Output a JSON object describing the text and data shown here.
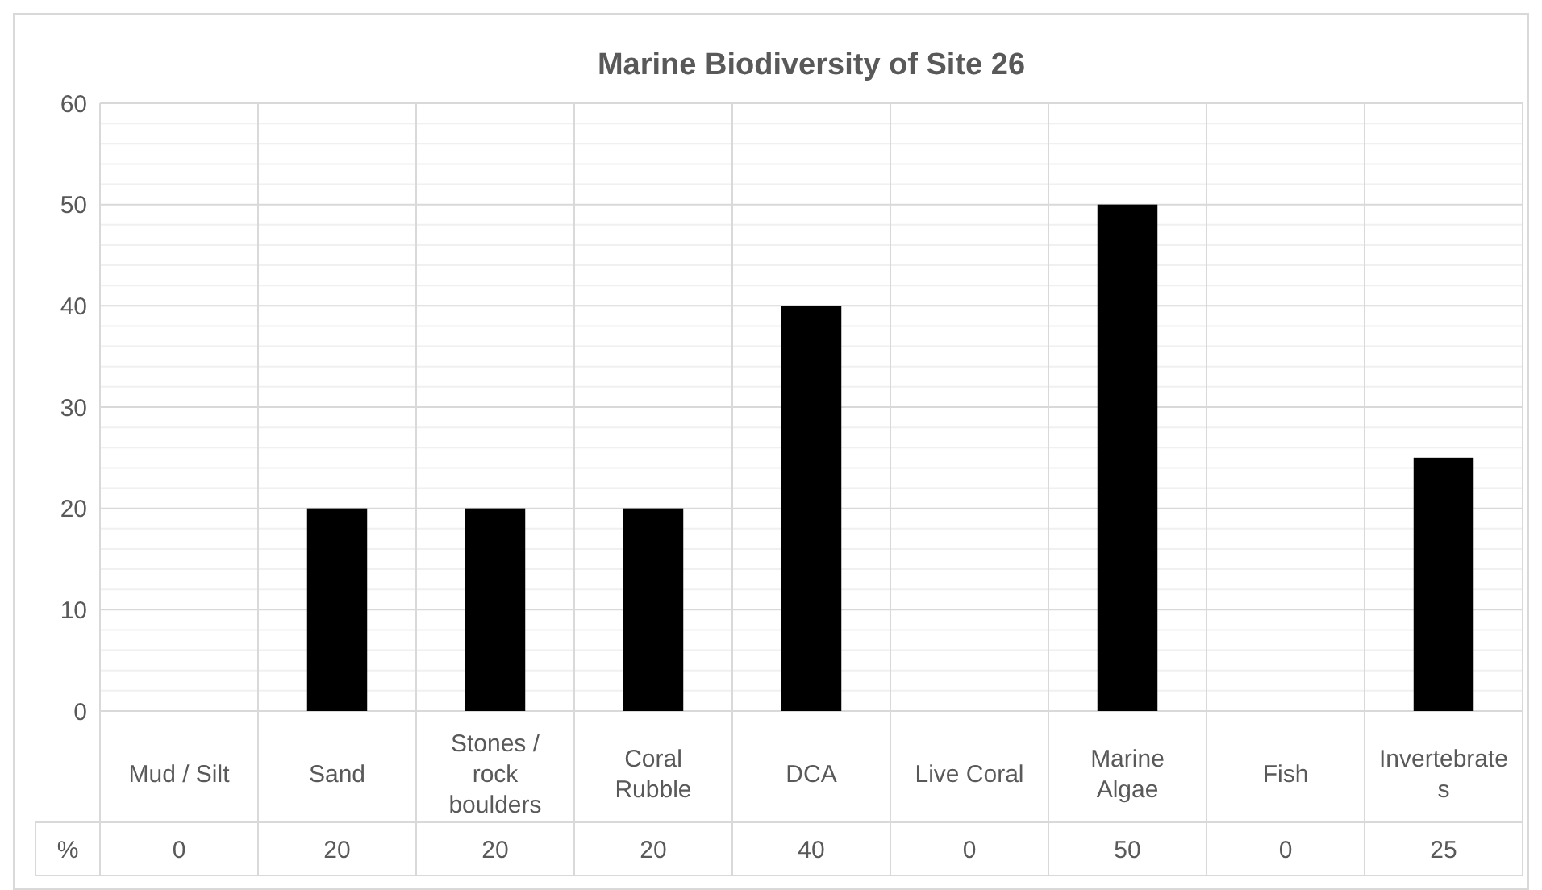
{
  "chart_data": {
    "type": "bar",
    "title": "Marine Biodiversity of Site 26",
    "categories": [
      "Mud / Silt",
      "Sand",
      "Stones / rock boulders",
      "Coral Rubble",
      "DCA",
      "Live Coral",
      "Marine Algae",
      "Fish",
      "Invertebrates"
    ],
    "series": [
      {
        "name": "%",
        "color": "#000000",
        "values": [
          0,
          20,
          20,
          20,
          40,
          0,
          50,
          0,
          25
        ]
      }
    ],
    "ylim": [
      0,
      60
    ],
    "yticks": [
      0,
      {
        "value": 2,
        "label": null
      },
      {
        "value": 4,
        "label": null
      },
      {
        "value": 6,
        "label": null
      },
      {
        "value": 8,
        "label": null
      },
      10,
      {
        "value": 12,
        "label": null
      },
      {
        "value": 14,
        "label": null
      },
      {
        "value": 16,
        "label": null
      },
      {
        "value": 18,
        "label": null
      },
      20,
      {
        "value": 22,
        "label": null
      },
      {
        "value": 24,
        "label": null
      },
      {
        "value": 26,
        "label": null
      },
      {
        "value": 28,
        "label": null
      },
      30,
      {
        "value": 32,
        "label": null
      },
      {
        "value": 34,
        "label": null
      },
      {
        "value": 36,
        "label": null
      },
      {
        "value": 38,
        "label": null
      },
      40,
      {
        "value": 42,
        "label": null
      },
      {
        "value": 44,
        "label": null
      },
      {
        "value": 46,
        "label": null
      },
      {
        "value": 48,
        "label": null
      },
      50,
      {
        "value": 52,
        "label": null
      },
      {
        "value": 54,
        "label": null
      },
      {
        "value": 56,
        "label": null
      },
      {
        "value": 58,
        "label": null
      },
      60
    ],
    "grid": true,
    "data_labels": true
  }
}
